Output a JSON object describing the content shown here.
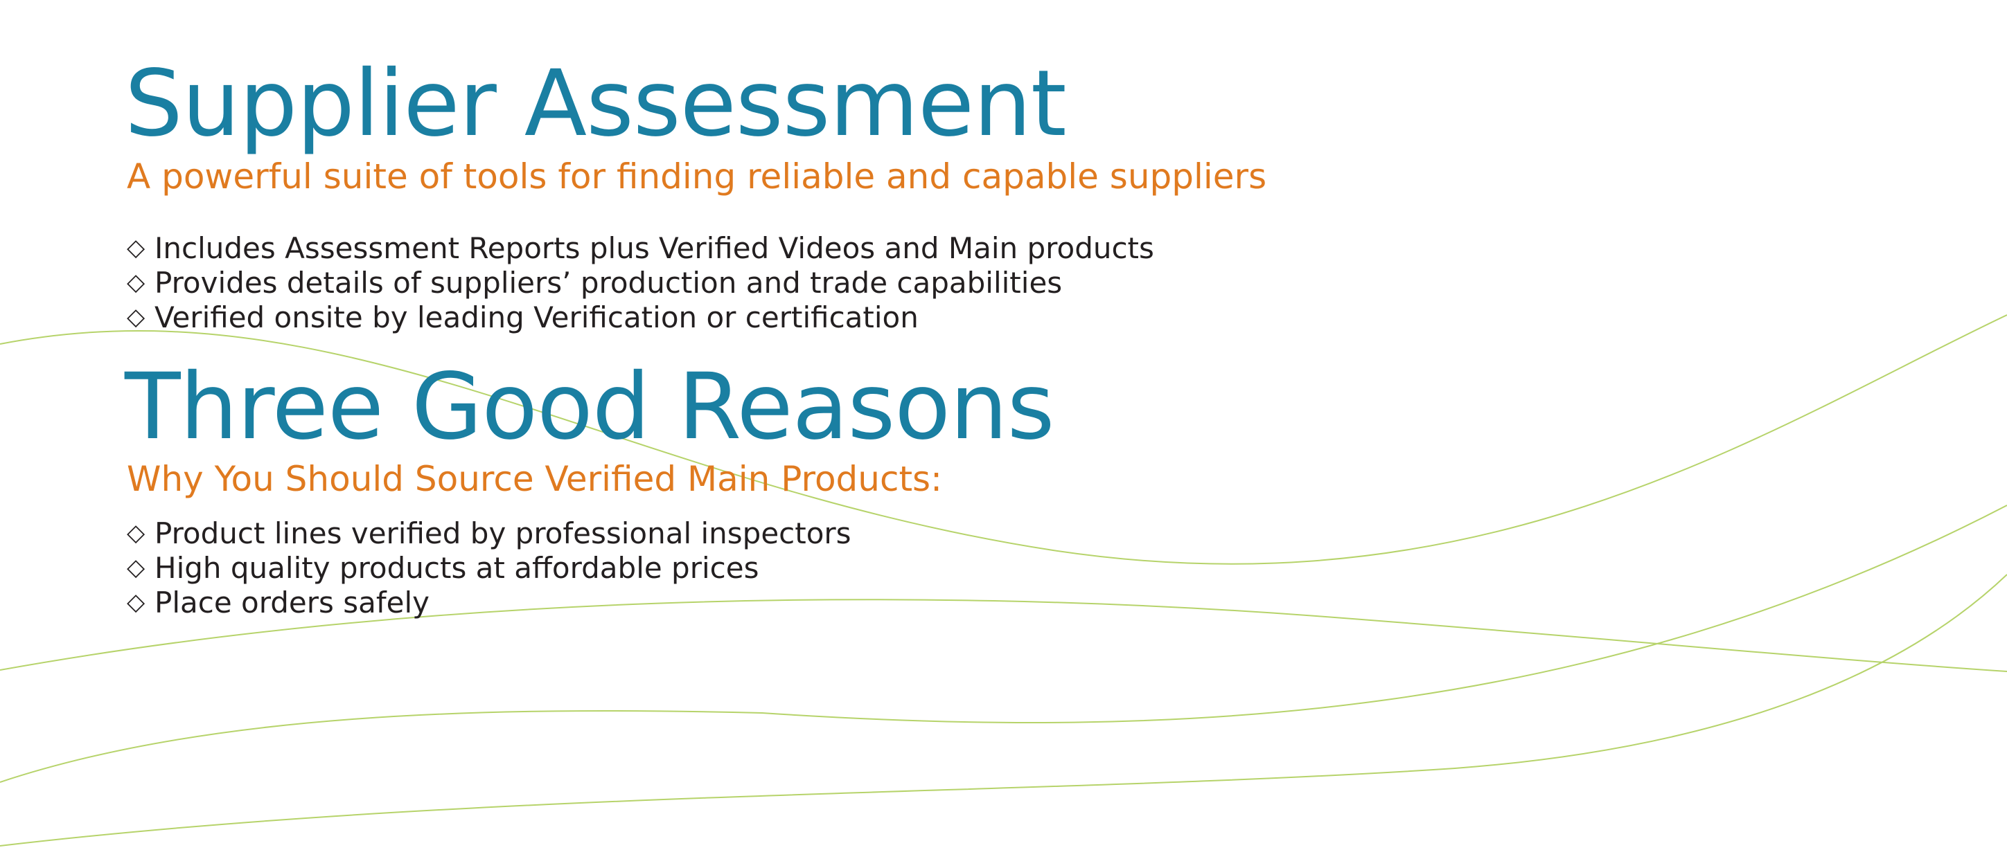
{
  "colors": {
    "heading": "#1a7fa2",
    "subheading": "#e07a1f",
    "body_text": "#231f20",
    "wave_lines": "#b6d36a"
  },
  "bullet_marker": "◇",
  "section1": {
    "title": "Supplier Assessment",
    "subtitle": "A powerful suite of tools for finding reliable and capable suppliers",
    "bullets": [
      "Includes Assessment Reports plus Verified Videos and Main products",
      "Provides details of suppliers’ production and trade capabilities",
      "Verified onsite by leading Verification or certification"
    ]
  },
  "section2": {
    "title": "Three Good Reasons",
    "subtitle": "Why You Should Source Verified Main Products:",
    "bullets": [
      "Product lines verified by professional inspectors",
      "High quality products at affordable prices",
      "Place orders safely"
    ]
  }
}
